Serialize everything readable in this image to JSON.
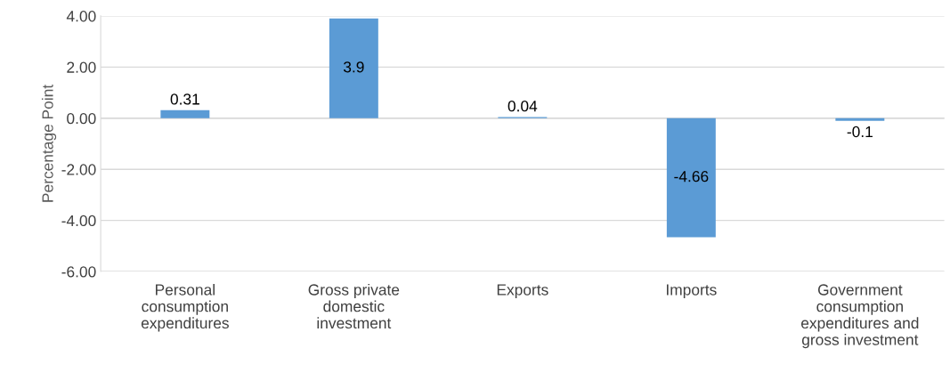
{
  "chart_data": {
    "type": "bar",
    "ylabel": "Percentage Point",
    "categories": [
      "Personal consumption expenditures",
      "Gross private domestic investment",
      "Exports",
      "Imports",
      "Government consumption expenditures and gross investment"
    ],
    "values": [
      0.31,
      3.9,
      0.04,
      -4.66,
      -0.1
    ],
    "color": "#5b9bd5",
    "ylim": [
      -6,
      4
    ],
    "yticks": [
      {
        "value": -6,
        "label": "-6.00"
      },
      {
        "value": -4,
        "label": "-4.00"
      },
      {
        "value": -2,
        "label": "-2.00"
      },
      {
        "value": 0,
        "label": "0.00"
      },
      {
        "value": 2,
        "label": "2.00"
      },
      {
        "value": 4,
        "label": "4.00"
      }
    ],
    "grid": "y",
    "data_labels": true
  }
}
